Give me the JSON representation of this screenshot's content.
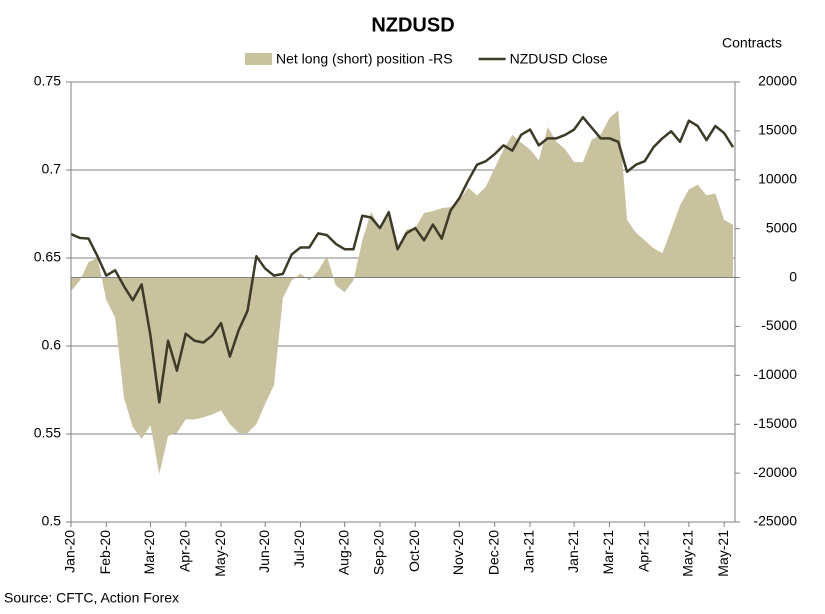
{
  "chart_data": {
    "type": "line",
    "title": "NZDUSD",
    "y2_label": "Contracts",
    "source": "Source: CFTC, Action Forex",
    "categories": [
      "Jan-20",
      null,
      null,
      null,
      "Feb-20",
      null,
      null,
      null,
      null,
      "Mar-20",
      null,
      null,
      null,
      "Apr-20",
      null,
      null,
      null,
      "May-20",
      null,
      null,
      null,
      null,
      "Jun-20",
      null,
      null,
      null,
      "Jul-20",
      null,
      null,
      null,
      null,
      "Aug-20",
      null,
      null,
      null,
      "Sep-20",
      null,
      null,
      null,
      "Oct-20",
      null,
      null,
      null,
      null,
      "Nov-20",
      null,
      null,
      null,
      "Dec-20",
      null,
      null,
      null,
      "Jan-21",
      null,
      null,
      null,
      null,
      "Jan-21",
      null,
      null,
      null,
      "Mar-21",
      null,
      null,
      null,
      "Apr-21",
      null,
      null,
      null,
      null,
      "May-21",
      null,
      null,
      null,
      "May-21",
      null
    ],
    "series": [
      {
        "name": "Net long (short) position -RS",
        "type": "area",
        "axis": "y2",
        "color": "#c9c29f",
        "values": [
          -1400,
          -300,
          1600,
          2000,
          -2300,
          -4100,
          -12300,
          -15300,
          -16500,
          -15100,
          -20100,
          -16200,
          -15900,
          -14500,
          -14500,
          -14300,
          -14000,
          -13600,
          -15000,
          -15900,
          -15900,
          -15000,
          -12900,
          -11000,
          -2100,
          -300,
          400,
          -300,
          700,
          2200,
          -800,
          -1500,
          -300,
          3800,
          6700,
          5100,
          6300,
          3100,
          4900,
          5100,
          6600,
          6800,
          7100,
          7200,
          7900,
          9200,
          8400,
          9300,
          11200,
          13100,
          14600,
          13800,
          13100,
          12000,
          15400,
          13900,
          13100,
          11800,
          11800,
          14100,
          14600,
          16300,
          17100,
          5900,
          4600,
          3800,
          3000,
          2500,
          4900,
          7400,
          9000,
          9500,
          8400,
          8600,
          5900,
          5400
        ]
      },
      {
        "name": "NZDUSD Close",
        "type": "line",
        "color": "#3d3b27",
        "values": [
          0.6636,
          0.6614,
          0.661,
          0.651,
          0.64,
          0.643,
          0.634,
          0.626,
          0.635,
          0.606,
          0.568,
          0.603,
          0.586,
          0.607,
          0.603,
          0.602,
          0.606,
          0.613,
          0.594,
          0.609,
          0.62,
          0.651,
          0.644,
          0.64,
          0.641,
          0.652,
          0.656,
          0.656,
          0.664,
          0.663,
          0.658,
          0.655,
          0.655,
          0.674,
          0.673,
          0.667,
          0.676,
          0.655,
          0.664,
          0.667,
          0.66,
          0.669,
          0.661,
          0.677,
          0.684,
          0.694,
          0.703,
          0.705,
          0.709,
          0.714,
          0.711,
          0.72,
          0.723,
          0.714,
          0.718,
          0.718,
          0.72,
          0.723,
          0.73,
          0.724,
          0.718,
          0.718,
          0.716,
          0.699,
          0.703,
          0.705,
          0.713,
          0.718,
          0.722,
          0.716,
          0.728,
          0.725,
          0.717,
          0.725,
          0.721,
          0.713
        ]
      }
    ],
    "ylim": [
      0.5,
      0.75
    ],
    "yticks": [
      0.5,
      0.55,
      0.6,
      0.65,
      0.7,
      0.75
    ],
    "y2lim": [
      -25000,
      20000
    ],
    "y2ticks": [
      -25000,
      -20000,
      -15000,
      -10000,
      -5000,
      0,
      5000,
      10000,
      15000,
      20000
    ],
    "grid": true,
    "legend": "top"
  }
}
